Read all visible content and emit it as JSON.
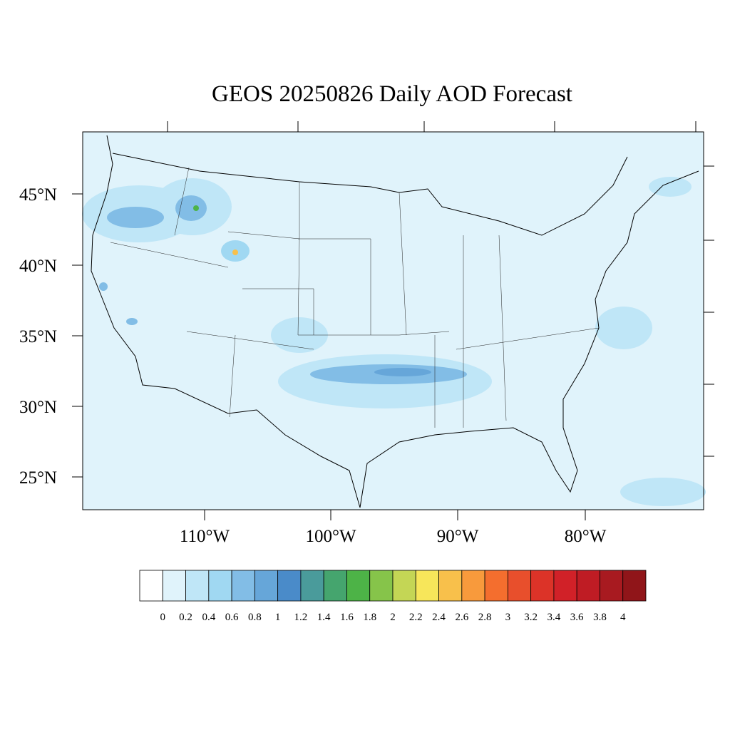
{
  "title": "GEOS 20250826 Daily AOD Forecast",
  "lat_labels": [
    "45°N",
    "40°N",
    "35°N",
    "30°N",
    "25°N"
  ],
  "lon_labels": [
    "110°W",
    "100°W",
    "90°W",
    "80°W"
  ],
  "colorbar": {
    "colors": [
      "#ffffff",
      "#e0f3fb",
      "#bfe6f7",
      "#a0d8f2",
      "#82bde6",
      "#66a6d9",
      "#4a8bc9",
      "#4a9b9b",
      "#45a56e",
      "#4db347",
      "#86c44a",
      "#c4d655",
      "#f7e65a",
      "#f8c04b",
      "#f89a3c",
      "#f46e2e",
      "#e84f2c",
      "#dc3328",
      "#d12128",
      "#bf1c24",
      "#a81a20",
      "#901519"
    ],
    "labels": [
      "0",
      "0.2",
      "0.4",
      "0.6",
      "0.8",
      "1",
      "1.2",
      "1.4",
      "1.6",
      "1.8",
      "2",
      "2.2",
      "2.4",
      "2.6",
      "2.8",
      "3",
      "3.2",
      "3.4",
      "3.6",
      "3.8",
      "4"
    ]
  }
}
